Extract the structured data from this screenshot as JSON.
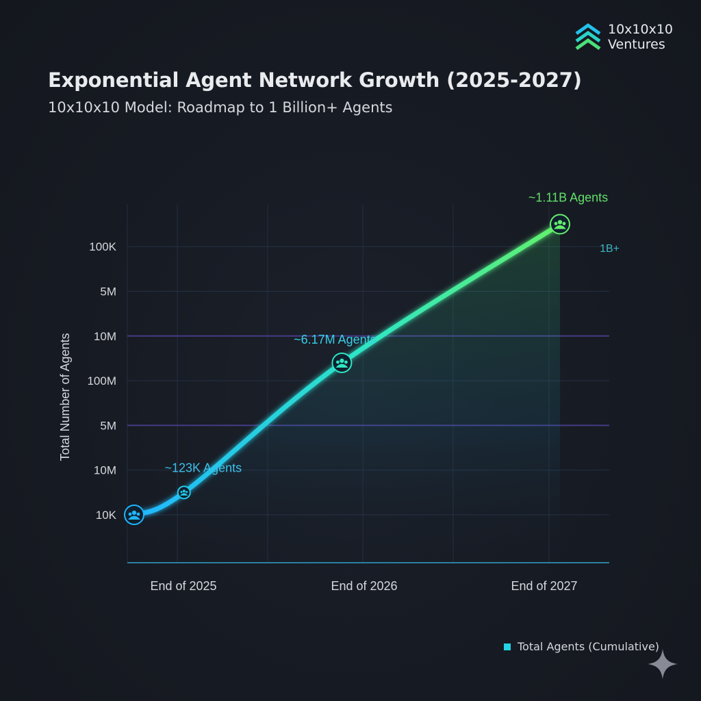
{
  "logo": {
    "line1": "10x10x10",
    "line2": "Ventures",
    "icon": "chevron-stack-icon"
  },
  "header": {
    "title": "Exponential Agent Network Growth (2025-2027)",
    "subtitle": "10x10x10 Model: Roadmap to 1 Billion+ Agents"
  },
  "legend": {
    "label": "Total Agents (Cumulative)",
    "color": "#22d3e6"
  },
  "colors": {
    "line_start": "#1fb6ff",
    "line_mid": "#2ee6c4",
    "line_end": "#63f06c",
    "axis": "#2a7fa0",
    "grid": "#2b3a52",
    "grid_highlight": "#4b3f8f"
  },
  "chart_data": {
    "type": "line",
    "title": "Exponential Agent Network Growth (2025-2027)",
    "subtitle": "10x10x10 Model: Roadmap to 1 Billion+ Agents",
    "xlabel": "",
    "ylabel": "Total Number of Agents",
    "categories": [
      "End of 2025",
      "End of 2026",
      "End of 2027"
    ],
    "y_tick_labels": [
      "10K",
      "10M",
      "5M",
      "100M",
      "10M",
      "5M",
      "100K"
    ],
    "y_tick_emphasis": [
      false,
      false,
      true,
      false,
      true,
      false,
      false
    ],
    "right_label": "1B+",
    "series": [
      {
        "name": "Total Agents (Cumulative)",
        "x": [
          0,
          0.24,
          1.0,
          2.05
        ],
        "y": [
          0,
          0.5,
          3.4,
          6.5
        ],
        "milestones": [
          {
            "label": "~123K Agents",
            "index": 1
          },
          {
            "label": "~6.17M Agents",
            "index": 2
          },
          {
            "label": "~1.11B Agents",
            "index": 3
          }
        ]
      }
    ],
    "legend": "bottom-right",
    "grid": true
  },
  "watermark": {
    "icon": "sparkle-icon"
  }
}
